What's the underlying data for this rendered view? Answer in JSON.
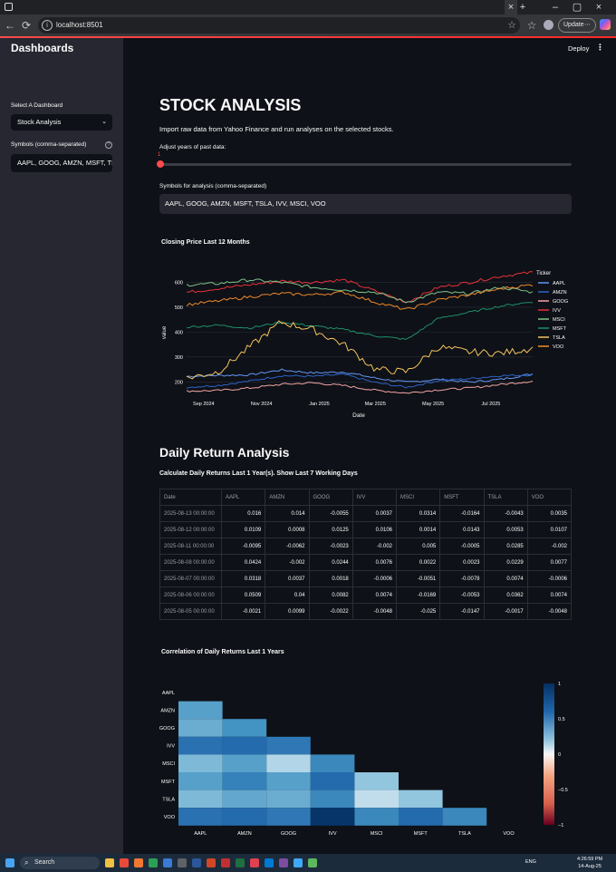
{
  "browser": {
    "url": "localhost:8501",
    "update_label": "Update"
  },
  "app": {
    "deploy_label": "Deploy"
  },
  "sidebar": {
    "title": "Dashboards",
    "select_label": "Select A Dashboard",
    "select_value": "Stock Analysis",
    "symbols_label": "Symbols (comma-separated)",
    "symbols_value": "AAPL, GOOG, AMZN, MSFT, TS"
  },
  "main": {
    "title": "STOCK ANALYSIS",
    "subtitle": "Import raw data from Yahoo Finance and run analyses on the selected stocks.",
    "slider_label": "Adjust years of past data:",
    "slider_value": "1",
    "symbols_label": "Symbols for analysis (comma-separated)",
    "symbols_value": "AAPL, GOOG, AMZN, MSFT, TSLA, IVV, MSCI, VOO",
    "daily_return_heading": "Daily Return Analysis",
    "daily_return_caption": "Calculate Daily Returns Last 1 Year(s). Show Last 7 Working Days"
  },
  "line_chart": {
    "title": "Closing Price Last 12 Months",
    "xlabel": "Date",
    "ylabel": "value",
    "legend_title": "Ticker",
    "x_ticks": [
      "Sep 2024",
      "Nov 2024",
      "Jan 2025",
      "Mar 2025",
      "May 2025",
      "Jul 2025"
    ],
    "y_ticks": [
      "200",
      "300",
      "400",
      "500",
      "600"
    ]
  },
  "returns_table": {
    "columns": [
      "Date",
      "AAPL",
      "AMZN",
      "GOOG",
      "IVV",
      "MSCI",
      "MSFT",
      "TSLA",
      "VOO"
    ],
    "rows": [
      [
        "2025-08-13 00:00:00",
        "0.016",
        "0.014",
        "-0.0055",
        "0.0037",
        "0.0314",
        "-0.0164",
        "-0.0043",
        "0.0035"
      ],
      [
        "2025-08-12 00:00:00",
        "0.0109",
        "0.0008",
        "0.0125",
        "0.0106",
        "0.0014",
        "0.0143",
        "0.0053",
        "0.0107"
      ],
      [
        "2025-08-11 00:00:00",
        "-0.0095",
        "-0.0062",
        "-0.0023",
        "-0.002",
        "0.005",
        "-0.0005",
        "0.0285",
        "-0.002"
      ],
      [
        "2025-08-08 00:00:00",
        "0.0424",
        "-0.002",
        "0.0244",
        "0.0076",
        "0.0022",
        "0.0023",
        "0.0229",
        "0.0077"
      ],
      [
        "2025-08-07 00:00:00",
        "0.0318",
        "0.0037",
        "0.0018",
        "-0.0006",
        "-0.0051",
        "-0.0078",
        "0.0074",
        "-0.0006"
      ],
      [
        "2025-08-06 00:00:00",
        "0.0509",
        "0.04",
        "0.0082",
        "0.0074",
        "-0.0169",
        "-0.0053",
        "0.0362",
        "0.0074"
      ],
      [
        "2025-08-05 00:00:00",
        "-0.0021",
        "0.0099",
        "-0.0022",
        "-0.0048",
        "-0.025",
        "-0.0147",
        "-0.0017",
        "-0.0048"
      ]
    ]
  },
  "heatmap": {
    "title": "Correlation of Daily Returns Last 1 Years",
    "colorbar_ticks": [
      "1",
      "0.5",
      "0",
      "−0.5",
      "−1"
    ]
  },
  "taskbar": {
    "search_label": "Search",
    "time": "4:26:59 PM",
    "date": "14-Aug-25",
    "lang": "ENG"
  },
  "chart_data": [
    {
      "type": "line",
      "title": "Closing Price Last 12 Months",
      "xlabel": "Date",
      "ylabel": "value",
      "x": [
        "2024-08-14",
        "2024-10-01",
        "2024-11-15",
        "2024-12-15",
        "2025-01-15",
        "2025-02-15",
        "2025-03-15",
        "2025-04-10",
        "2025-05-15",
        "2025-06-15",
        "2025-07-15",
        "2025-08-14"
      ],
      "ylim": [
        150,
        660
      ],
      "legend_position": "right",
      "series": [
        {
          "name": "AAPL",
          "color": "#6497f5",
          "values": [
            222,
            226,
            228,
            248,
            236,
            240,
            215,
            198,
            210,
            199,
            210,
            232
          ]
        },
        {
          "name": "AMZN",
          "color": "#2e62c9",
          "values": [
            178,
            186,
            203,
            225,
            222,
            230,
            197,
            178,
            205,
            213,
            225,
            228
          ]
        },
        {
          "name": "GOOG",
          "color": "#f3a5a5",
          "values": [
            163,
            165,
            175,
            190,
            196,
            185,
            166,
            155,
            168,
            175,
            190,
            203
          ]
        },
        {
          "name": "IVV",
          "color": "#e8313a",
          "values": [
            560,
            575,
            590,
            605,
            600,
            610,
            565,
            520,
            580,
            600,
            625,
            640
          ]
        },
        {
          "name": "MSCI",
          "color": "#7ec389",
          "values": [
            590,
            595,
            610,
            600,
            580,
            570,
            560,
            520,
            560,
            555,
            580,
            560
          ]
        },
        {
          "name": "MSFT",
          "color": "#1e8f6a",
          "values": [
            420,
            428,
            416,
            440,
            425,
            410,
            385,
            370,
            455,
            480,
            505,
            522
          ]
        },
        {
          "name": "TSLA",
          "color": "#f4c35d",
          "values": [
            215,
            240,
            340,
            440,
            410,
            350,
            250,
            240,
            340,
            320,
            315,
            335
          ]
        },
        {
          "name": "VOO",
          "color": "#f08a2c",
          "values": [
            510,
            525,
            542,
            555,
            550,
            560,
            520,
            490,
            530,
            550,
            575,
            590
          ]
        }
      ]
    },
    {
      "type": "heatmap",
      "title": "Correlation of Daily Returns Last 1 Years",
      "x": [
        "AAPL",
        "AMZN",
        "GOOG",
        "IVV",
        "MSCI",
        "MSFT",
        "TSLA",
        "VOO"
      ],
      "y": [
        "AAPL",
        "AMZN",
        "GOOG",
        "IVV",
        "MSCI",
        "MSFT",
        "TSLA",
        "VOO"
      ],
      "zlim": [
        -1,
        1
      ],
      "colorscale": "RdBu",
      "values": [
        [
          null,
          null,
          null,
          null,
          null,
          null,
          null,
          null
        ],
        [
          0.55,
          null,
          null,
          null,
          null,
          null,
          null,
          null
        ],
        [
          0.5,
          0.6,
          null,
          null,
          null,
          null,
          null,
          null
        ],
        [
          0.75,
          0.78,
          0.72,
          null,
          null,
          null,
          null,
          null
        ],
        [
          0.45,
          0.55,
          0.3,
          0.65,
          null,
          null,
          null,
          null
        ],
        [
          0.55,
          0.68,
          0.55,
          0.78,
          0.4,
          null,
          null,
          null
        ],
        [
          0.45,
          0.52,
          0.5,
          0.65,
          0.25,
          0.4,
          null,
          null
        ],
        [
          0.75,
          0.78,
          0.72,
          0.98,
          0.65,
          0.78,
          0.65,
          null
        ]
      ]
    }
  ]
}
